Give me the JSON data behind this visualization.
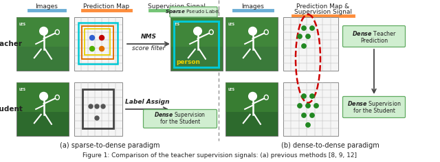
{
  "fig_width": 6.4,
  "fig_height": 2.36,
  "dpi": 100,
  "bg_color": "#ffffff",
  "left_legend_labels": [
    "Images",
    "Prediction Map",
    "Supervision Signal"
  ],
  "left_legend_colors": [
    "#6baed6",
    "#fd8d3c",
    "#74c476"
  ],
  "right_legend_labels_line1": "Images",
  "right_legend_labels_line2": "Prediction Map &",
  "right_legend_labels_line3": "Supervision Signal",
  "right_color_images": "#6baed6",
  "right_color_pred": "#fd8d3c",
  "caption_left": "(a) sparse-to-dense paradigm",
  "caption_right": "(b) dense-to-dense paradigm",
  "bottom_text": "Figure 1: Comparison of the teacher supervision signals: (a) previous methods [8, 9, 12]",
  "teacher_label": "Teacher",
  "student_label": "Student",
  "nms_text1": "NMS",
  "nms_text2": "score filter",
  "label_assign_text": "Label Assign",
  "sparse_pseudo_label_it": "Sparse",
  "sparse_pseudo_label_rest": " Pseudo Label",
  "dense_supervision_it": "Dense",
  "dense_supervision_rest": " Supervision",
  "dense_supervision_line2": "for the Student",
  "dense_teacher_it": "Dense",
  "dense_teacher_rest": " Teacher",
  "dense_teacher_line2": "Prediction",
  "dense_supervision_right_it": "Dense",
  "dense_supervision_right_rest": " Supervision",
  "dense_supervision_right_line2": "for the Student",
  "person_label": "person",
  "court_green_dark": "#2d6a2d",
  "court_green_mid": "#3a7a3a",
  "court_green_light": "#4a9a3a",
  "grid_color": "#bbbbbb",
  "grid_bg": "#f5f5f5",
  "box_cyan": "#00c8d4",
  "box_yellow": "#e8d000",
  "box_orange": "#e07000",
  "dot_blue": "#3060d0",
  "dot_red": "#c00000",
  "dot_green_bright": "#50b000",
  "dot_orange": "#e07000",
  "dense_box_color": "#444444",
  "arrow_color": "#444444",
  "red_dashed": "#cc0000",
  "green_dense_dot": "#228822",
  "highlight_green_bg": "#d0eed0",
  "highlight_green_border": "#60aa60",
  "divider_color": "#888888",
  "text_color": "#222222",
  "yellow_text": "#e8d000",
  "white": "#ffffff"
}
